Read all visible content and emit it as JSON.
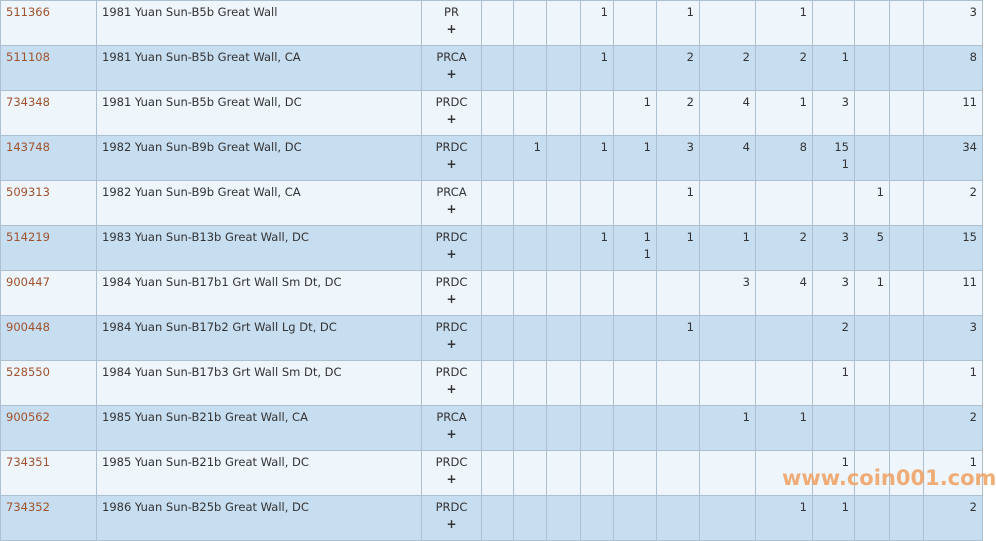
{
  "rows": [
    {
      "id": "511366",
      "name": "1981 Yuan Sun-B5b Great Wall",
      "designation": "PR",
      "cells": [
        "",
        "",
        "",
        "1",
        "",
        "1",
        "",
        "1",
        "",
        "",
        "",
        ""
      ],
      "total": "3"
    },
    {
      "id": "511108",
      "name": "1981 Yuan Sun-B5b Great Wall, CA",
      "designation": "PRCA",
      "cells": [
        "",
        "",
        "",
        "1",
        "",
        "2",
        "2",
        "2",
        "1",
        "",
        "",
        ""
      ],
      "total": "8"
    },
    {
      "id": "734348",
      "name": "1981 Yuan Sun-B5b Great Wall, DC",
      "designation": "PRDC",
      "cells": [
        "",
        "",
        "",
        "",
        "1",
        "2",
        "4",
        "1",
        "3",
        "",
        "",
        ""
      ],
      "total": "11"
    },
    {
      "id": "143748",
      "name": "1982 Yuan Sun-B9b Great Wall, DC",
      "designation": "PRDC",
      "cells": [
        "",
        "1",
        "",
        "1",
        "1",
        "3",
        "4",
        "8",
        "15\n1",
        "",
        "",
        ""
      ],
      "total": "34"
    },
    {
      "id": "509313",
      "name": "1982 Yuan Sun-B9b Great Wall, CA",
      "designation": "PRCA",
      "cells": [
        "",
        "",
        "",
        "",
        "",
        "1",
        "",
        "",
        "",
        "1",
        "",
        ""
      ],
      "total": "2"
    },
    {
      "id": "514219",
      "name": "1983 Yuan Sun-B13b Great Wall, DC",
      "designation": "PRDC",
      "cells": [
        "",
        "",
        "",
        "1",
        "1\n1",
        "1",
        "1",
        "2",
        "3",
        "5",
        "",
        ""
      ],
      "total": "15"
    },
    {
      "id": "900447",
      "name": "1984 Yuan Sun-B17b1 Grt Wall Sm Dt, DC",
      "designation": "PRDC",
      "cells": [
        "",
        "",
        "",
        "",
        "",
        "",
        "3",
        "4",
        "3",
        "1",
        "",
        ""
      ],
      "total": "11"
    },
    {
      "id": "900448",
      "name": "1984 Yuan Sun-B17b2 Grt Wall Lg Dt, DC",
      "designation": "PRDC",
      "cells": [
        "",
        "",
        "",
        "",
        "",
        "1",
        "",
        "",
        "2",
        "",
        "",
        ""
      ],
      "total": "3"
    },
    {
      "id": "528550",
      "name": "1984 Yuan Sun-B17b3 Grt Wall Sm Dt, DC",
      "designation": "PRDC",
      "cells": [
        "",
        "",
        "",
        "",
        "",
        "",
        "",
        "",
        "1",
        "",
        "",
        ""
      ],
      "total": "1"
    },
    {
      "id": "900562",
      "name": "1985 Yuan Sun-B21b Great Wall, CA",
      "designation": "PRCA",
      "cells": [
        "",
        "",
        "",
        "",
        "",
        "",
        "1",
        "1",
        "",
        "",
        "",
        ""
      ],
      "total": "2"
    },
    {
      "id": "734351",
      "name": "1985 Yuan Sun-B21b Great Wall, DC",
      "designation": "PRDC",
      "cells": [
        "",
        "",
        "",
        "",
        "",
        "",
        "",
        "",
        "1",
        "",
        "",
        ""
      ],
      "total": "1"
    },
    {
      "id": "734352",
      "name": "1986 Yuan Sun-B25b Great Wall, DC",
      "designation": "PRDC",
      "cells": [
        "",
        "",
        "",
        "",
        "",
        "",
        "",
        "1",
        "1",
        "",
        "",
        ""
      ],
      "total": "2"
    }
  ],
  "plus_symbol": "+",
  "watermark": "www.coin001.com",
  "colors": {
    "row_light": "#eef5fb",
    "row_dark": "#c7ddf0",
    "link": "#a0522d",
    "watermark": "#f0a060"
  }
}
